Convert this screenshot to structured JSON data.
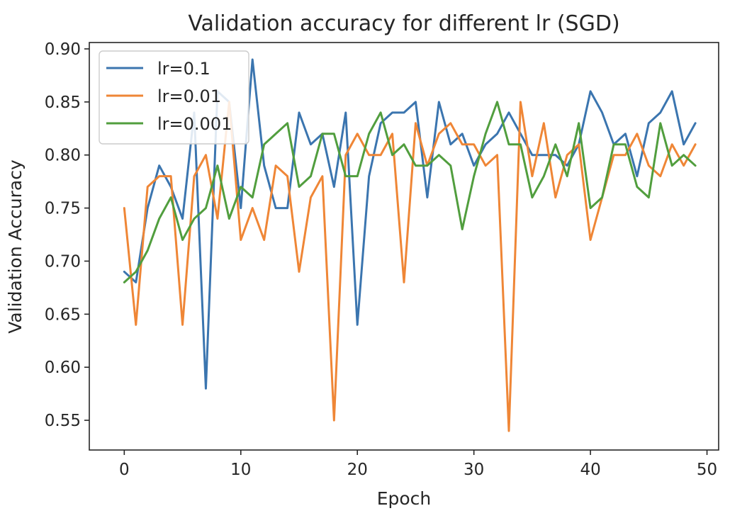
{
  "chart_data": {
    "type": "line",
    "title": "Validation accuracy for different lr (SGD)",
    "xlabel": "Epoch",
    "ylabel": "Validation Accuracy",
    "xlim": [
      -3,
      51
    ],
    "ylim": [
      0.522,
      0.906
    ],
    "xticks": [
      0,
      10,
      20,
      30,
      40,
      50
    ],
    "xtick_labels": [
      "0",
      "10",
      "20",
      "30",
      "40",
      "50"
    ],
    "yticks": [
      0.55,
      0.6,
      0.65,
      0.7,
      0.75,
      0.8,
      0.85,
      0.9
    ],
    "ytick_labels": [
      "0.55",
      "0.60",
      "0.65",
      "0.70",
      "0.75",
      "0.80",
      "0.85",
      "0.90"
    ],
    "grid": false,
    "legend_position": "top-left",
    "x": [
      0,
      1,
      2,
      3,
      4,
      5,
      6,
      7,
      8,
      9,
      10,
      11,
      12,
      13,
      14,
      15,
      16,
      17,
      18,
      19,
      20,
      21,
      22,
      23,
      24,
      25,
      26,
      27,
      28,
      29,
      30,
      31,
      32,
      33,
      34,
      35,
      36,
      37,
      38,
      39,
      40,
      41,
      42,
      43,
      44,
      45,
      46,
      47,
      48,
      49
    ],
    "series": [
      {
        "name": "lr=0.1",
        "color": "#3b75af",
        "values": [
          0.69,
          0.68,
          0.75,
          0.79,
          0.77,
          0.74,
          0.84,
          0.58,
          0.86,
          0.85,
          0.75,
          0.89,
          0.79,
          0.75,
          0.75,
          0.84,
          0.81,
          0.82,
          0.77,
          0.84,
          0.64,
          0.78,
          0.83,
          0.84,
          0.84,
          0.85,
          0.76,
          0.85,
          0.81,
          0.82,
          0.79,
          0.81,
          0.82,
          0.84,
          0.82,
          0.8,
          0.8,
          0.8,
          0.79,
          0.81,
          0.86,
          0.84,
          0.81,
          0.82,
          0.78,
          0.83,
          0.84,
          0.86,
          0.81,
          0.83
        ]
      },
      {
        "name": "lr=0.01",
        "color": "#ef8636",
        "values": [
          0.75,
          0.64,
          0.77,
          0.78,
          0.78,
          0.64,
          0.78,
          0.8,
          0.74,
          0.85,
          0.72,
          0.75,
          0.72,
          0.79,
          0.78,
          0.69,
          0.76,
          0.78,
          0.55,
          0.8,
          0.82,
          0.8,
          0.8,
          0.82,
          0.68,
          0.83,
          0.79,
          0.82,
          0.83,
          0.81,
          0.81,
          0.79,
          0.8,
          0.54,
          0.85,
          0.78,
          0.83,
          0.76,
          0.8,
          0.81,
          0.72,
          0.76,
          0.8,
          0.8,
          0.82,
          0.79,
          0.78,
          0.81,
          0.79,
          0.81
        ]
      },
      {
        "name": "lr=0.001",
        "color": "#519e3e",
        "values": [
          0.68,
          0.69,
          0.71,
          0.74,
          0.76,
          0.72,
          0.74,
          0.75,
          0.79,
          0.74,
          0.77,
          0.76,
          0.81,
          0.82,
          0.83,
          0.77,
          0.78,
          0.82,
          0.82,
          0.78,
          0.78,
          0.82,
          0.84,
          0.8,
          0.81,
          0.79,
          0.79,
          0.8,
          0.79,
          0.73,
          0.78,
          0.82,
          0.85,
          0.81,
          0.81,
          0.76,
          0.78,
          0.81,
          0.78,
          0.83,
          0.75,
          0.76,
          0.81,
          0.81,
          0.77,
          0.76,
          0.83,
          0.79,
          0.8,
          0.79
        ]
      }
    ]
  }
}
